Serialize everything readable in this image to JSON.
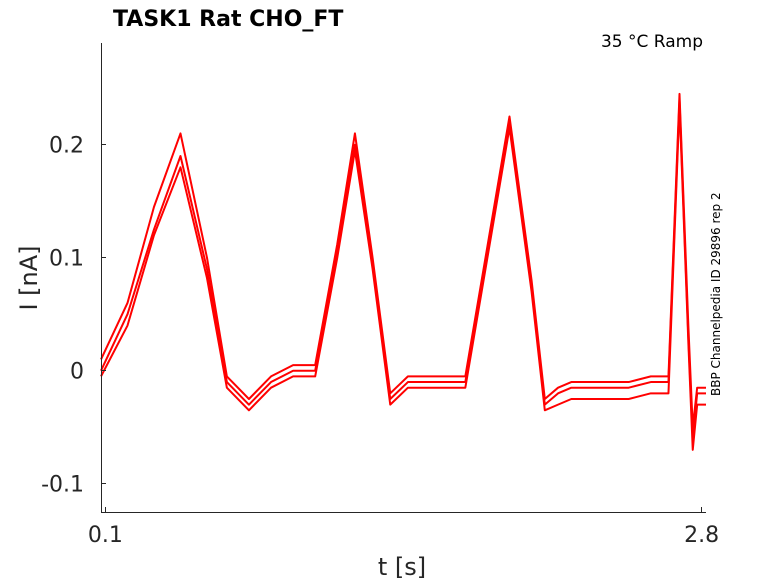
{
  "chart_data": {
    "type": "line",
    "title": "TASK1  Rat  CHO_FT",
    "annotation": "35 °C  Ramp",
    "side_label": "BBP Channelpedia ID 29896 rep 2",
    "xlabel": "t [s]",
    "ylabel": "I [nA]",
    "xlim": [
      0.08,
      2.82
    ],
    "ylim": [
      -0.125,
      0.29
    ],
    "x_ticks": [
      0.1,
      2.8
    ],
    "x_tick_labels": [
      "0.1",
      "2.8"
    ],
    "y_ticks": [
      -0.1,
      0,
      0.1,
      0.2
    ],
    "y_tick_labels": [
      "-0.1",
      "0",
      "0.1",
      "0.2"
    ],
    "grid": false,
    "line_color": "#ff0000",
    "series": [
      {
        "x": [
          0.08,
          0.2,
          0.32,
          0.44,
          0.56,
          0.65,
          0.75,
          0.85,
          0.95,
          1.05,
          1.15,
          1.23,
          1.31,
          1.39,
          1.47,
          1.55,
          1.63,
          1.73,
          1.83,
          1.93,
          2.03,
          2.09,
          2.15,
          2.21,
          2.27,
          2.37,
          2.47,
          2.57,
          2.65,
          2.7,
          2.74,
          2.76,
          2.78,
          2.82
        ],
        "values": [
          0.0,
          0.05,
          0.125,
          0.19,
          0.09,
          -0.01,
          -0.03,
          -0.01,
          0.0,
          0.0,
          0.105,
          0.2,
          0.095,
          -0.025,
          -0.01,
          -0.01,
          -0.01,
          -0.01,
          0.105,
          0.22,
          0.075,
          -0.03,
          -0.02,
          -0.015,
          -0.015,
          -0.015,
          -0.015,
          -0.01,
          -0.01,
          0.24,
          0.03,
          -0.06,
          -0.02,
          -0.02
        ]
      },
      {
        "x": [
          0.08,
          0.2,
          0.32,
          0.44,
          0.56,
          0.65,
          0.75,
          0.85,
          0.95,
          1.05,
          1.15,
          1.23,
          1.31,
          1.39,
          1.47,
          1.55,
          1.63,
          1.73,
          1.83,
          1.93,
          2.03,
          2.09,
          2.15,
          2.21,
          2.27,
          2.37,
          2.47,
          2.57,
          2.65,
          2.7,
          2.74,
          2.76,
          2.78,
          2.82
        ],
        "values": [
          0.01,
          0.06,
          0.145,
          0.21,
          0.1,
          -0.005,
          -0.025,
          -0.005,
          0.005,
          0.005,
          0.112,
          0.21,
          0.1,
          -0.02,
          -0.005,
          -0.005,
          -0.005,
          -0.005,
          0.11,
          0.225,
          0.08,
          -0.025,
          -0.015,
          -0.01,
          -0.01,
          -0.01,
          -0.01,
          -0.005,
          -0.005,
          0.245,
          0.04,
          -0.05,
          -0.015,
          -0.015
        ]
      },
      {
        "x": [
          0.08,
          0.2,
          0.32,
          0.44,
          0.56,
          0.65,
          0.75,
          0.85,
          0.95,
          1.05,
          1.15,
          1.23,
          1.31,
          1.39,
          1.47,
          1.55,
          1.63,
          1.73,
          1.83,
          1.93,
          2.03,
          2.09,
          2.15,
          2.21,
          2.27,
          2.37,
          2.47,
          2.57,
          2.65,
          2.7,
          2.74,
          2.76,
          2.78,
          2.82
        ],
        "values": [
          -0.005,
          0.04,
          0.12,
          0.18,
          0.082,
          -0.015,
          -0.035,
          -0.015,
          -0.005,
          -0.005,
          0.1,
          0.195,
          0.09,
          -0.03,
          -0.015,
          -0.015,
          -0.015,
          -0.015,
          0.1,
          0.215,
          0.07,
          -0.035,
          -0.03,
          -0.025,
          -0.025,
          -0.025,
          -0.025,
          -0.02,
          -0.02,
          0.235,
          0.025,
          -0.07,
          -0.03,
          -0.03
        ]
      }
    ]
  }
}
